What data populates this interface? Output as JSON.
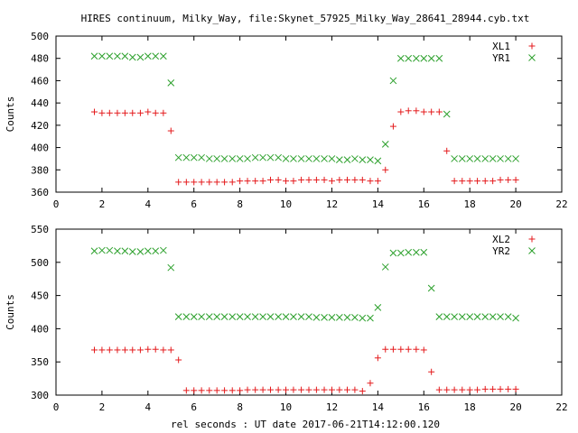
{
  "title": "HIRES continuum, Milky_Way, file:Skynet_57925_Milky_Way_28641_28944.cyb.txt",
  "xlabel": "rel seconds : UT date 2017-06-21T14:12:00.120",
  "chart_data": [
    {
      "type": "scatter",
      "ylabel": "Counts",
      "xlim": [
        0,
        22
      ],
      "ylim": [
        360,
        500
      ],
      "xticks": [
        "0",
        "2",
        "4",
        "6",
        "8",
        "10",
        "12",
        "14",
        "16",
        "18",
        "20",
        "22"
      ],
      "yticks": [
        "360",
        "380",
        "400",
        "420",
        "440",
        "460",
        "480",
        "500"
      ],
      "legend_position": "top-right",
      "series": [
        {
          "name": "XL1",
          "marker": "+",
          "color": "#e41a1c",
          "x": [
            1.67,
            2.0,
            2.33,
            2.67,
            3.0,
            3.33,
            3.67,
            4.0,
            4.33,
            4.67,
            5.0,
            5.33,
            5.67,
            6.0,
            6.33,
            6.67,
            7.0,
            7.33,
            7.67,
            8.0,
            8.33,
            8.67,
            9.0,
            9.33,
            9.67,
            10.0,
            10.33,
            10.67,
            11.0,
            11.33,
            11.67,
            12.0,
            12.33,
            12.67,
            13.0,
            13.33,
            13.67,
            14.0,
            14.33,
            14.67,
            15.0,
            15.33,
            15.67,
            16.0,
            16.33,
            16.67,
            17.0,
            17.33,
            17.67,
            18.0,
            18.33,
            18.67,
            19.0,
            19.33,
            19.67,
            20.0
          ],
          "y": [
            432,
            431,
            431,
            431,
            431,
            431,
            431,
            432,
            431,
            431,
            415,
            369,
            369,
            369,
            369,
            369,
            369,
            369,
            369,
            370,
            370,
            370,
            370,
            371,
            371,
            370,
            370,
            371,
            371,
            371,
            371,
            370,
            371,
            371,
            371,
            371,
            370,
            370,
            380,
            419,
            432,
            433,
            433,
            432,
            432,
            432,
            397,
            370,
            370,
            370,
            370,
            370,
            370,
            371,
            371,
            371
          ]
        },
        {
          "name": "YR1",
          "marker": "x",
          "color": "#2ca02c",
          "x": [
            1.67,
            2.0,
            2.33,
            2.67,
            3.0,
            3.33,
            3.67,
            4.0,
            4.33,
            4.67,
            5.0,
            5.33,
            5.67,
            6.0,
            6.33,
            6.67,
            7.0,
            7.33,
            7.67,
            8.0,
            8.33,
            8.67,
            9.0,
            9.33,
            9.67,
            10.0,
            10.33,
            10.67,
            11.0,
            11.33,
            11.67,
            12.0,
            12.33,
            12.67,
            13.0,
            13.33,
            13.67,
            14.0,
            14.33,
            14.67,
            15.0,
            15.33,
            15.67,
            16.0,
            16.33,
            16.67,
            17.0,
            17.33,
            17.67,
            18.0,
            18.33,
            18.67,
            19.0,
            19.33,
            19.67,
            20.0
          ],
          "y": [
            482,
            482,
            482,
            482,
            482,
            481,
            481,
            482,
            482,
            482,
            458,
            391,
            391,
            391,
            391,
            390,
            390,
            390,
            390,
            390,
            390,
            391,
            391,
            391,
            391,
            390,
            390,
            390,
            390,
            390,
            390,
            390,
            389,
            389,
            390,
            389,
            389,
            388,
            403,
            460,
            480,
            480,
            480,
            480,
            480,
            480,
            430,
            390,
            390,
            390,
            390,
            390,
            390,
            390,
            390,
            390
          ]
        }
      ]
    },
    {
      "type": "scatter",
      "ylabel": "Counts",
      "xlim": [
        0,
        22
      ],
      "ylim": [
        300,
        550
      ],
      "xticks": [
        "0",
        "2",
        "4",
        "6",
        "8",
        "10",
        "12",
        "14",
        "16",
        "18",
        "20",
        "22"
      ],
      "yticks": [
        "300",
        "350",
        "400",
        "450",
        "500",
        "550"
      ],
      "legend_position": "top-right",
      "series": [
        {
          "name": "XL2",
          "marker": "+",
          "color": "#e41a1c",
          "x": [
            1.67,
            2.0,
            2.33,
            2.67,
            3.0,
            3.33,
            3.67,
            4.0,
            4.33,
            4.67,
            5.0,
            5.33,
            5.67,
            6.0,
            6.33,
            6.67,
            7.0,
            7.33,
            7.67,
            8.0,
            8.33,
            8.67,
            9.0,
            9.33,
            9.67,
            10.0,
            10.33,
            10.67,
            11.0,
            11.33,
            11.67,
            12.0,
            12.33,
            12.67,
            13.0,
            13.33,
            13.67,
            14.0,
            14.33,
            14.67,
            15.0,
            15.33,
            15.67,
            16.0,
            16.33,
            16.67,
            17.0,
            17.33,
            17.67,
            18.0,
            18.33,
            18.67,
            19.0,
            19.33,
            19.67,
            20.0
          ],
          "y": [
            368,
            368,
            368,
            368,
            368,
            368,
            368,
            369,
            369,
            368,
            368,
            353,
            307,
            307,
            307,
            307,
            307,
            307,
            307,
            307,
            308,
            308,
            308,
            308,
            308,
            308,
            308,
            308,
            308,
            308,
            308,
            308,
            308,
            308,
            308,
            306,
            318,
            356,
            369,
            369,
            369,
            369,
            369,
            368,
            335,
            308,
            308,
            308,
            308,
            308,
            308,
            309,
            309,
            309,
            309,
            309
          ]
        },
        {
          "name": "YR2",
          "marker": "x",
          "color": "#2ca02c",
          "x": [
            1.67,
            2.0,
            2.33,
            2.67,
            3.0,
            3.33,
            3.67,
            4.0,
            4.33,
            4.67,
            5.0,
            5.33,
            5.67,
            6.0,
            6.33,
            6.67,
            7.0,
            7.33,
            7.67,
            8.0,
            8.33,
            8.67,
            9.0,
            9.33,
            9.67,
            10.0,
            10.33,
            10.67,
            11.0,
            11.33,
            11.67,
            12.0,
            12.33,
            12.67,
            13.0,
            13.33,
            13.67,
            14.0,
            14.33,
            14.67,
            15.0,
            15.33,
            15.67,
            16.0,
            16.33,
            16.67,
            17.0,
            17.33,
            17.67,
            18.0,
            18.33,
            18.67,
            19.0,
            19.33,
            19.67,
            20.0
          ],
          "y": [
            517,
            518,
            518,
            517,
            517,
            516,
            516,
            517,
            517,
            518,
            492,
            418,
            418,
            418,
            418,
            418,
            418,
            418,
            418,
            418,
            418,
            418,
            418,
            418,
            418,
            418,
            418,
            418,
            418,
            417,
            417,
            417,
            417,
            417,
            417,
            416,
            416,
            432,
            493,
            514,
            514,
            515,
            515,
            515,
            461,
            418,
            418,
            418,
            418,
            418,
            418,
            418,
            418,
            418,
            418,
            416
          ]
        }
      ]
    }
  ]
}
